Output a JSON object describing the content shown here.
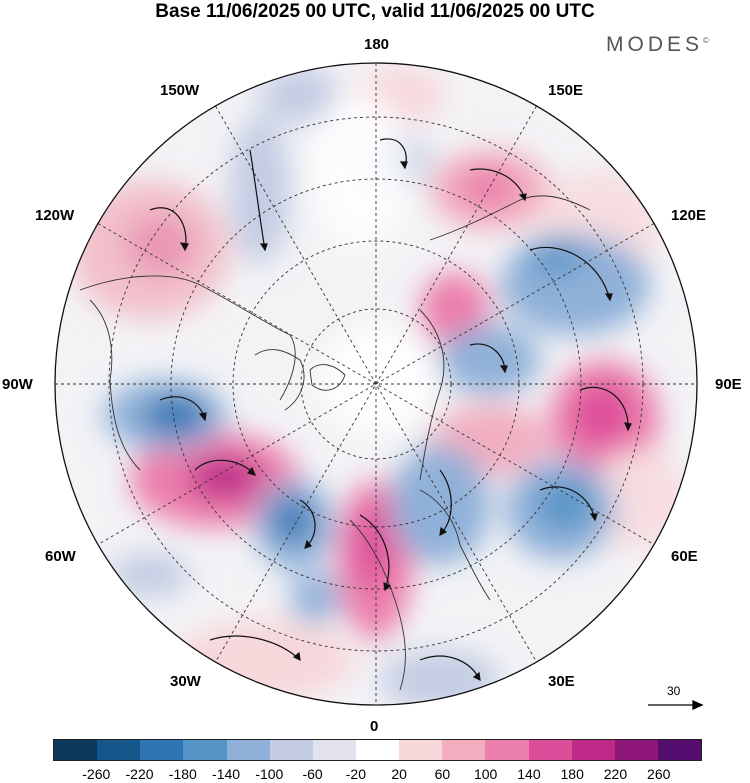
{
  "title": "Base 11/06/2025 00 UTC, valid 11/06/2025 00 UTC",
  "brand": "MODES",
  "brand_mark": "©",
  "longitude_labels": {
    "top": "180",
    "bottom": "0",
    "left": "90W",
    "right": "90E",
    "upper_left_1": "150W",
    "upper_left_2": "120W",
    "lower_left_1": "60W",
    "lower_left_2": "30W",
    "upper_right_1": "150E",
    "upper_right_2": "120E",
    "lower_right_1": "60E",
    "lower_right_2": "30E"
  },
  "reference_vector": {
    "value": "30"
  },
  "colorbar": {
    "colors": [
      "#0d3a5c",
      "#15578a",
      "#2f74b3",
      "#5494c7",
      "#8fb0d8",
      "#c3cce3",
      "#e2e2ee",
      "#ffffff",
      "#f7d7da",
      "#f2aebf",
      "#ec7eab",
      "#dd4e9a",
      "#bf2a89",
      "#8e1679",
      "#540d6e"
    ],
    "ticks": [
      "-260",
      "-220",
      "-180",
      "-140",
      "-100",
      "-60",
      "-20",
      "20",
      "60",
      "100",
      "140",
      "180",
      "220",
      "260"
    ]
  }
}
